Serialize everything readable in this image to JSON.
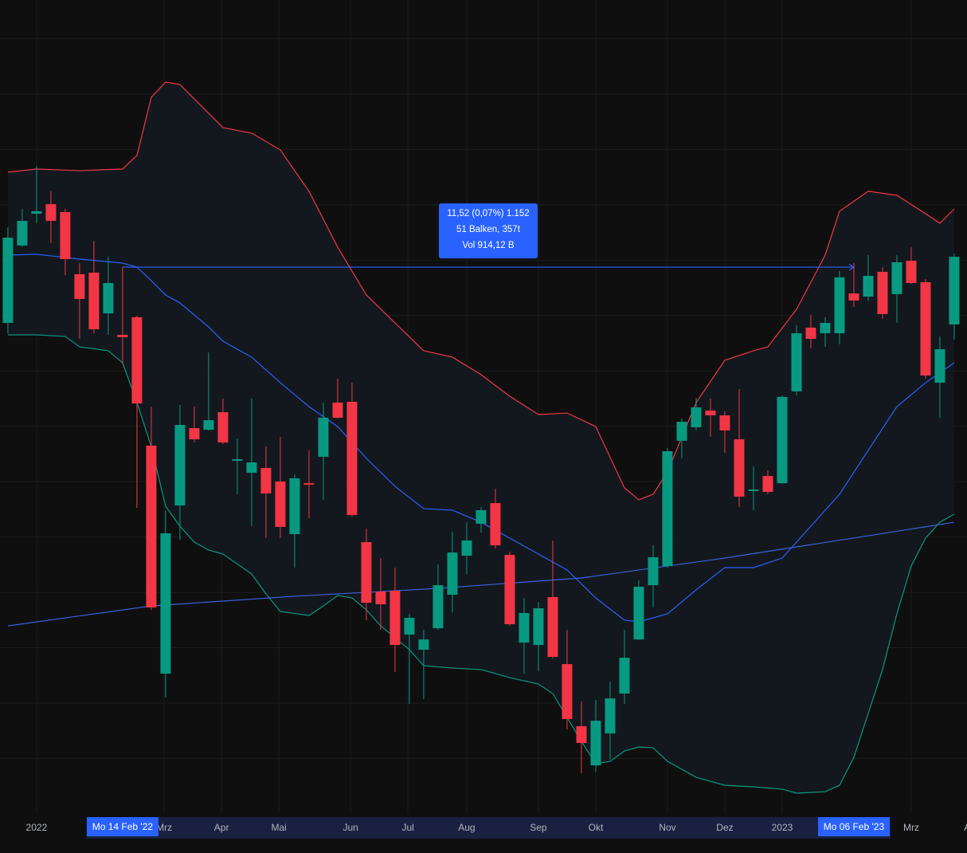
{
  "chart_data": {
    "type": "candlestick",
    "xlim": [
      -0.55,
      66.89
    ],
    "ylim": [
      11605,
      17480
    ],
    "yticks": [
      12000,
      12400,
      12800,
      13200,
      13600,
      14000,
      14400,
      14800,
      15200,
      15600,
      16000,
      16400,
      16800,
      17200
    ],
    "grid": true,
    "up_color": "#089981",
    "down_color": "#f23645",
    "xticks": [
      {
        "value": 2,
        "label": "2022"
      },
      {
        "value": 10.9,
        "label": "Mrz"
      },
      {
        "value": 14.9,
        "label": "Apr"
      },
      {
        "value": 18.9,
        "label": "Mai"
      },
      {
        "value": 23.9,
        "label": "Jun"
      },
      {
        "value": 27.9,
        "label": "Jul"
      },
      {
        "value": 32,
        "label": "Aug"
      },
      {
        "value": 37,
        "label": "Sep"
      },
      {
        "value": 41,
        "label": "Okt"
      },
      {
        "value": 46,
        "label": "Nov"
      },
      {
        "value": 50,
        "label": "Dez"
      },
      {
        "value": 54,
        "label": "2023"
      },
      {
        "value": 63,
        "label": "Mrz"
      },
      {
        "value": 67.2,
        "label": "Apr"
      }
    ],
    "candles": {
      "open": [
        15147,
        15706,
        15936,
        16005,
        15948,
        15499,
        15510,
        15216,
        15061,
        15188,
        14260,
        12613,
        13828,
        14387,
        14375,
        14502,
        14151,
        14064,
        14099,
        14001,
        13621,
        13989,
        14180,
        14571,
        14577,
        13563,
        13206,
        13212,
        12895,
        12786,
        12941,
        13183,
        13465,
        13696,
        13845,
        13471,
        12837,
        12820,
        13166,
        12682,
        12233,
        11950,
        12181,
        12469,
        12860,
        13252,
        13390,
        14295,
        14393,
        14514,
        14479,
        14306,
        13932,
        14041,
        13989,
        14652,
        15113,
        15072,
        15072,
        15360,
        15337,
        15516,
        15355,
        15596,
        15441,
        14715,
        15136
      ],
      "high": [
        15838,
        15971,
        16282,
        16098,
        15971,
        15579,
        15740,
        15625,
        15550,
        15199,
        14542,
        13794,
        14554,
        14542,
        14934,
        14600,
        14312,
        14600,
        14254,
        14324,
        14053,
        14226,
        14571,
        14744,
        14715,
        13661,
        13448,
        13379,
        13045,
        12930,
        13402,
        13638,
        13707,
        13817,
        13949,
        13494,
        13160,
        13131,
        13575,
        12930,
        12411,
        12423,
        12555,
        12930,
        13287,
        13540,
        14243,
        14456,
        14606,
        14600,
        14508,
        14669,
        14110,
        14082,
        14623,
        15130,
        15205,
        15188,
        15522,
        15579,
        15637,
        15550,
        15637,
        15694,
        15464,
        15049,
        15648
      ],
      "low": [
        15072,
        15694,
        15867,
        15723,
        15493,
        15032,
        15072,
        15061,
        14848,
        13811,
        13074,
        12440,
        13580,
        14283,
        14370,
        14272,
        13909,
        13678,
        13592,
        13592,
        13379,
        13736,
        13869,
        14456,
        13748,
        12999,
        12930,
        12624,
        12394,
        12428,
        12930,
        13056,
        13333,
        13632,
        13517,
        12958,
        12613,
        12630,
        12722,
        12210,
        11893,
        11904,
        11991,
        12394,
        12855,
        13091,
        13379,
        14168,
        14370,
        14324,
        14208,
        13817,
        13794,
        13909,
        13984,
        14623,
        14963,
        14974,
        14992,
        15262,
        15309,
        15176,
        15147,
        15429,
        14744,
        14462,
        15026
      ],
      "close": [
        15763,
        15884,
        15954,
        15884,
        15608,
        15320,
        15101,
        15435,
        15044,
        14565,
        13091,
        13627,
        14410,
        14306,
        14444,
        14283,
        14162,
        14139,
        13915,
        13673,
        14024,
        13978,
        14462,
        14462,
        13759,
        13125,
        13114,
        12820,
        13016,
        12860,
        13252,
        13488,
        13575,
        13794,
        13540,
        12970,
        13051,
        13085,
        12734,
        12285,
        12112,
        12273,
        12434,
        12728,
        13241,
        13454,
        14220,
        14433,
        14537,
        14479,
        14370,
        13892,
        13943,
        13926,
        14612,
        15072,
        15032,
        15147,
        15476,
        15309,
        15487,
        15211,
        15585,
        15435,
        14767,
        14957,
        15625
      ]
    },
    "overlays": [
      {
        "color": "#f23645",
        "x": [
          0,
          2,
          5,
          8,
          9,
          10,
          11,
          12,
          15,
          17,
          19,
          21,
          23,
          25,
          27,
          29,
          31,
          33,
          35,
          37,
          39,
          41,
          43,
          44,
          45,
          46,
          48,
          50,
          52,
          53,
          55,
          57,
          58,
          60,
          62,
          64,
          65,
          66
        ],
        "values": [
          16236,
          16259,
          16247,
          16259,
          16357,
          16777,
          16887,
          16869,
          16558,
          16518,
          16397,
          16098,
          15694,
          15349,
          15147,
          14946,
          14900,
          14773,
          14617,
          14485,
          14496,
          14398,
          13955,
          13869,
          13909,
          14070,
          14571,
          14877,
          14946,
          14974,
          15245,
          15637,
          15954,
          16098,
          16069,
          15936,
          15867,
          15971
        ]
      },
      {
        "color": "#2962ff",
        "x": [
          0,
          2,
          5,
          8,
          9,
          10,
          11,
          12,
          14,
          15,
          17,
          19,
          21,
          23,
          25,
          27,
          29,
          31,
          33,
          35,
          37,
          39,
          41,
          43,
          44,
          46,
          48,
          50,
          52,
          54,
          56,
          58,
          60,
          62,
          64,
          66
        ],
        "values": [
          15637,
          15643,
          15608,
          15579,
          15550,
          15452,
          15349,
          15291,
          15118,
          15015,
          14900,
          14715,
          14542,
          14398,
          14168,
          13966,
          13805,
          13794,
          13707,
          13592,
          13477,
          13362,
          13160,
          12999,
          12987,
          13045,
          13218,
          13379,
          13379,
          13448,
          13678,
          13909,
          14226,
          14542,
          14715,
          14859
        ]
      },
      {
        "color": "#089981",
        "x": [
          0,
          2,
          4,
          5,
          7,
          8,
          9,
          10,
          11,
          12,
          13,
          14,
          15,
          17,
          18,
          19,
          21,
          22,
          23,
          24,
          25,
          26,
          27,
          28,
          29,
          31,
          33,
          35,
          37,
          38,
          39,
          40,
          41,
          42,
          43,
          44,
          45,
          46,
          48,
          50,
          52,
          54,
          55,
          57,
          58,
          59,
          60,
          61,
          62,
          63,
          64,
          65,
          66
        ],
        "values": [
          15061,
          15061,
          15049,
          14974,
          14946,
          14859,
          14571,
          14254,
          13822,
          13678,
          13563,
          13506,
          13477,
          13333,
          13189,
          13062,
          13033,
          13102,
          13177,
          13160,
          13074,
          12958,
          12872,
          12786,
          12670,
          12653,
          12642,
          12584,
          12538,
          12469,
          12296,
          12123,
          11962,
          11979,
          12054,
          12083,
          12077,
          11979,
          11864,
          11806,
          11795,
          11778,
          11749,
          11760,
          11806,
          12008,
          12325,
          12642,
          13045,
          13390,
          13592,
          13707,
          13765
        ]
      },
      {
        "color": "#3a62e0",
        "x": [
          0,
          10,
          20,
          30,
          40,
          50,
          60,
          66
        ],
        "values": [
          12958,
          13102,
          13172,
          13229,
          13304,
          13448,
          13609,
          13707
        ]
      }
    ],
    "markers": [
      {
        "x": 8,
        "label": "Mo 14 Feb '22"
      },
      {
        "x": 59,
        "label": "Mo 06 Feb '23"
      }
    ],
    "measure": {
      "x": [
        8,
        59
      ],
      "value": 15550,
      "text": [
        "11,52 (0,07%) 1.152",
        "51 Balken, 357t",
        "Vol 914,12 B"
      ]
    }
  }
}
